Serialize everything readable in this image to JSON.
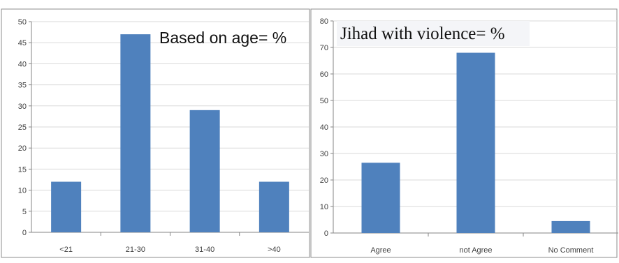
{
  "chart_data": [
    {
      "type": "bar",
      "title": "Based on age= %",
      "categories": [
        "<21",
        "21-30",
        "31-40",
        ">40"
      ],
      "values": [
        12,
        47,
        29,
        12
      ],
      "ylim": [
        0,
        50
      ],
      "yticks": [
        "0",
        "5",
        "10",
        "15",
        "20",
        "25",
        "30",
        "35",
        "40",
        "45",
        "50"
      ],
      "grid": true,
      "bar_color": "#4f81bd"
    },
    {
      "type": "bar",
      "title": "Jihad with violence= %",
      "categories": [
        "Agree",
        "not Agree",
        "No Comment"
      ],
      "values": [
        26.5,
        68,
        4.5
      ],
      "ylim": [
        0,
        80
      ],
      "yticks": [
        "0",
        "10",
        "20",
        "30",
        "40",
        "50",
        "60",
        "70",
        "80"
      ],
      "grid": true,
      "bar_color": "#4f81bd"
    }
  ]
}
